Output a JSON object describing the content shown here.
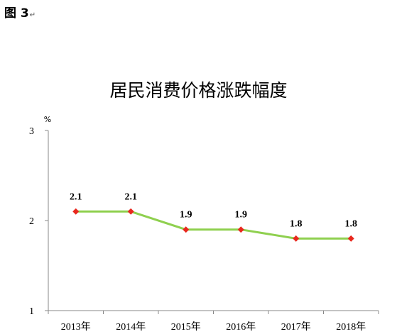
{
  "figure": {
    "label": "图 3",
    "mark": "↵"
  },
  "chart_data": {
    "type": "line",
    "title": "居民消费价格涨跌幅度",
    "xlabel": "",
    "ylabel": "",
    "unit": "%",
    "categories": [
      "2013年",
      "2014年",
      "2015年",
      "2016年",
      "2017年",
      "2018年"
    ],
    "values": [
      2.1,
      2.1,
      1.9,
      1.9,
      1.8,
      1.8
    ],
    "data_labels": [
      "2.1",
      "2.1",
      "1.9",
      "1.9",
      "1.8",
      "1.8"
    ],
    "ylim": [
      1,
      3
    ],
    "yticks": [
      "1",
      "2",
      "3"
    ],
    "grid": false,
    "line_color": "#8fd04f",
    "marker_color": "#e8281e"
  }
}
